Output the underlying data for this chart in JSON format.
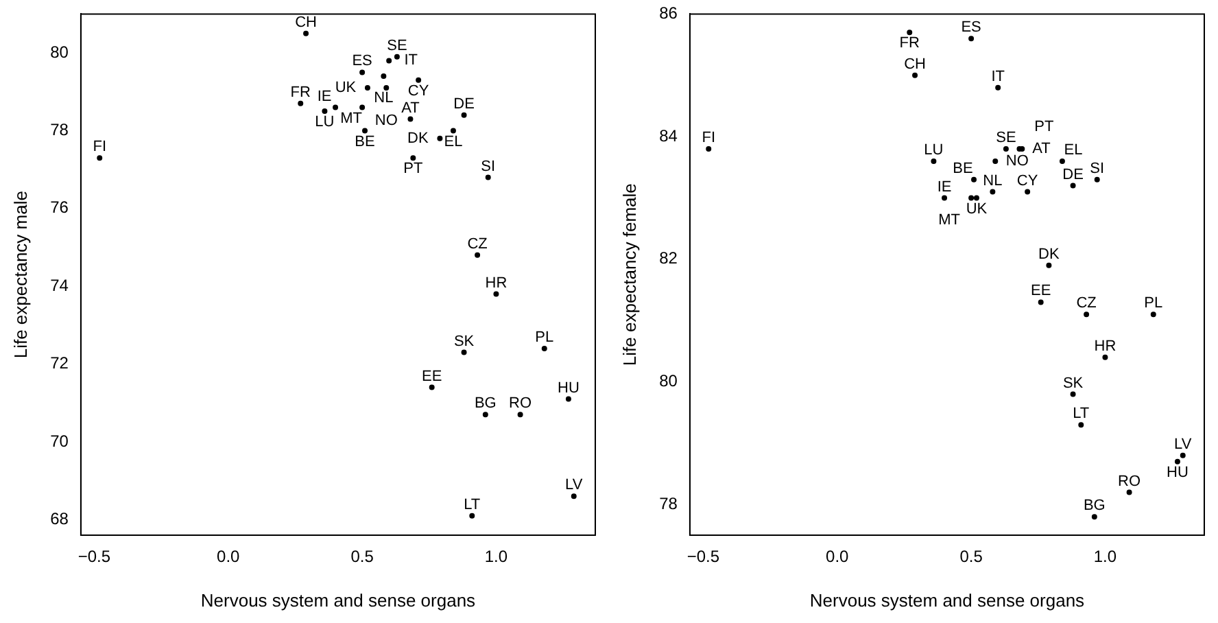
{
  "chart_data": [
    {
      "type": "scatter",
      "xlabel": "Nervous system and sense organs",
      "ylabel": "Life expectancy male",
      "color": "#000000",
      "marker": "circle",
      "grid": false,
      "legend": false,
      "x": [
        0.29,
        -0.48,
        0.5,
        0.6,
        0.63,
        0.58,
        0.59,
        0.71,
        0.52,
        0.27,
        0.36,
        0.4,
        0.5,
        0.51,
        0.68,
        0.88,
        0.84,
        0.79,
        0.69,
        0.97,
        0.93,
        1.0,
        0.88,
        1.18,
        0.76,
        1.27,
        0.96,
        1.09,
        1.29,
        0.91
      ],
      "values": [
        80.5,
        77.3,
        79.5,
        79.8,
        79.9,
        79.4,
        79.1,
        79.3,
        79.1,
        78.7,
        78.5,
        78.6,
        78.6,
        78.0,
        78.3,
        78.4,
        78.0,
        77.8,
        77.3,
        76.8,
        74.8,
        73.8,
        72.3,
        72.4,
        71.4,
        71.1,
        70.7,
        70.7,
        68.6,
        68.1
      ],
      "value_labels": [
        "CH",
        "FI",
        "ES",
        "IT",
        "SE",
        "NL",
        "NO",
        "CY",
        "UK",
        "FR",
        "LU",
        "IE",
        "MT",
        "BE",
        "AT",
        "DE",
        "EL",
        "DK",
        "PT",
        "SI",
        "CZ",
        "HR",
        "SK",
        "PL",
        "EE",
        "HU",
        "BG",
        "RO",
        "LV",
        "LT"
      ],
      "xlim": [
        -0.55,
        1.37
      ],
      "ylim": [
        67.6,
        81.0
      ],
      "xticks": [
        {
          "value": -0.5,
          "label": "−0.5"
        },
        {
          "value": 0,
          "label": "0.0"
        },
        0.5,
        {
          "value": 1,
          "label": "1.0"
        }
      ],
      "yticks": [
        68,
        70,
        72,
        74,
        76,
        78,
        80
      ]
    },
    {
      "type": "scatter",
      "xlabel": "Nervous system and sense organs",
      "ylabel": "Life expectancy female",
      "color": "#000000",
      "marker": "circle",
      "grid": false,
      "legend": false,
      "x": [
        0.29,
        -0.48,
        0.5,
        0.6,
        0.63,
        0.58,
        0.59,
        0.71,
        0.52,
        0.27,
        0.36,
        0.4,
        0.5,
        0.51,
        0.68,
        0.88,
        0.84,
        0.79,
        0.69,
        0.97,
        0.93,
        1.0,
        0.88,
        1.18,
        0.76,
        1.27,
        0.96,
        1.09,
        1.29,
        0.91
      ],
      "values": [
        85.0,
        83.8,
        85.6,
        84.8,
        83.8,
        83.1,
        83.6,
        83.1,
        83.0,
        85.7,
        83.6,
        83.0,
        83.0,
        83.3,
        83.8,
        83.2,
        83.6,
        81.9,
        83.8,
        83.3,
        81.1,
        80.4,
        79.8,
        81.1,
        81.3,
        78.7,
        77.8,
        78.2,
        78.8,
        79.3
      ],
      "value_labels": [
        "CH",
        "FI",
        "ES",
        "IT",
        "SE",
        "NL",
        "NO",
        "CY",
        "UK",
        "FR",
        "LU",
        "IE",
        "MT",
        "BE",
        "AT",
        "DE",
        "EL",
        "DK",
        "PT",
        "SI",
        "CZ",
        "HR",
        "SK",
        "PL",
        "EE",
        "HU",
        "BG",
        "RO",
        "LV",
        "LT"
      ],
      "xlim": [
        -0.55,
        1.37
      ],
      "ylim": [
        77.5,
        86.0
      ],
      "xticks": [
        {
          "value": -0.5,
          "label": "−0.5"
        },
        {
          "value": 0,
          "label": "0.0"
        },
        0.5,
        {
          "value": 1,
          "label": "1.0"
        }
      ],
      "yticks": [
        78,
        80,
        82,
        84,
        86
      ]
    }
  ]
}
